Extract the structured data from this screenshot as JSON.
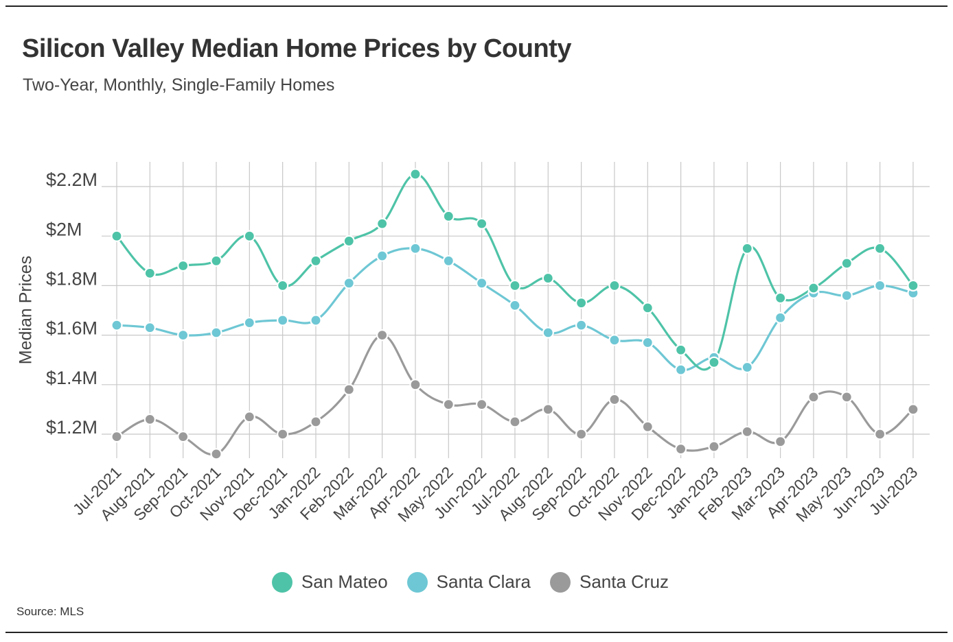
{
  "chart_data": {
    "type": "line",
    "title": "Silicon Valley Median Home Prices by County",
    "subtitle": "Two-Year, Monthly, Single-Family Homes",
    "xlabel": "",
    "ylabel": "Median Prices",
    "ylim": [
      1.05,
      2.3
    ],
    "yticks": [
      1.2,
      1.4,
      1.6,
      1.8,
      2.0,
      2.2
    ],
    "ytick_labels": [
      "$1.2M",
      "$1.4M",
      "$1.6M",
      "$1.8M",
      "$2M",
      "$2.2M"
    ],
    "categories": [
      "Jul-2021",
      "Aug-2021",
      "Sep-2021",
      "Oct-2021",
      "Nov-2021",
      "Dec-2021",
      "Jan-2022",
      "Feb-2022",
      "Mar-2022",
      "Apr-2022",
      "May-2022",
      "Jun-2022",
      "Jul-2022",
      "Aug-2022",
      "Sep-2022",
      "Oct-2022",
      "Nov-2022",
      "Dec-2022",
      "Jan-2023",
      "Feb-2023",
      "Mar-2023",
      "Apr-2023",
      "May-2023",
      "Jun-2023",
      "Jul-2023"
    ],
    "series": [
      {
        "name": "San Mateo",
        "color": "#4ec3a7",
        "values": [
          2.0,
          1.85,
          1.88,
          1.9,
          2.0,
          1.8,
          1.9,
          1.98,
          2.05,
          2.25,
          2.08,
          2.05,
          1.8,
          1.83,
          1.73,
          1.8,
          1.71,
          1.54,
          1.49,
          1.95,
          1.75,
          1.79,
          1.89,
          1.95,
          1.8
        ]
      },
      {
        "name": "Santa Clara",
        "color": "#6ec7d4",
        "values": [
          1.64,
          1.63,
          1.6,
          1.61,
          1.65,
          1.66,
          1.66,
          1.81,
          1.92,
          1.95,
          1.9,
          1.81,
          1.72,
          1.61,
          1.64,
          1.58,
          1.57,
          1.46,
          1.51,
          1.47,
          1.67,
          1.77,
          1.76,
          1.8,
          1.77
        ]
      },
      {
        "name": "Santa Cruz",
        "color": "#9a9a9a",
        "values": [
          1.19,
          1.26,
          1.19,
          1.12,
          1.27,
          1.2,
          1.25,
          1.38,
          1.6,
          1.4,
          1.32,
          1.32,
          1.25,
          1.3,
          1.2,
          1.34,
          1.23,
          1.14,
          1.15,
          1.21,
          1.17,
          1.35,
          1.35,
          1.2,
          1.3
        ]
      }
    ],
    "legend": "bottom-center",
    "grid": true
  },
  "source": "Source: MLS"
}
